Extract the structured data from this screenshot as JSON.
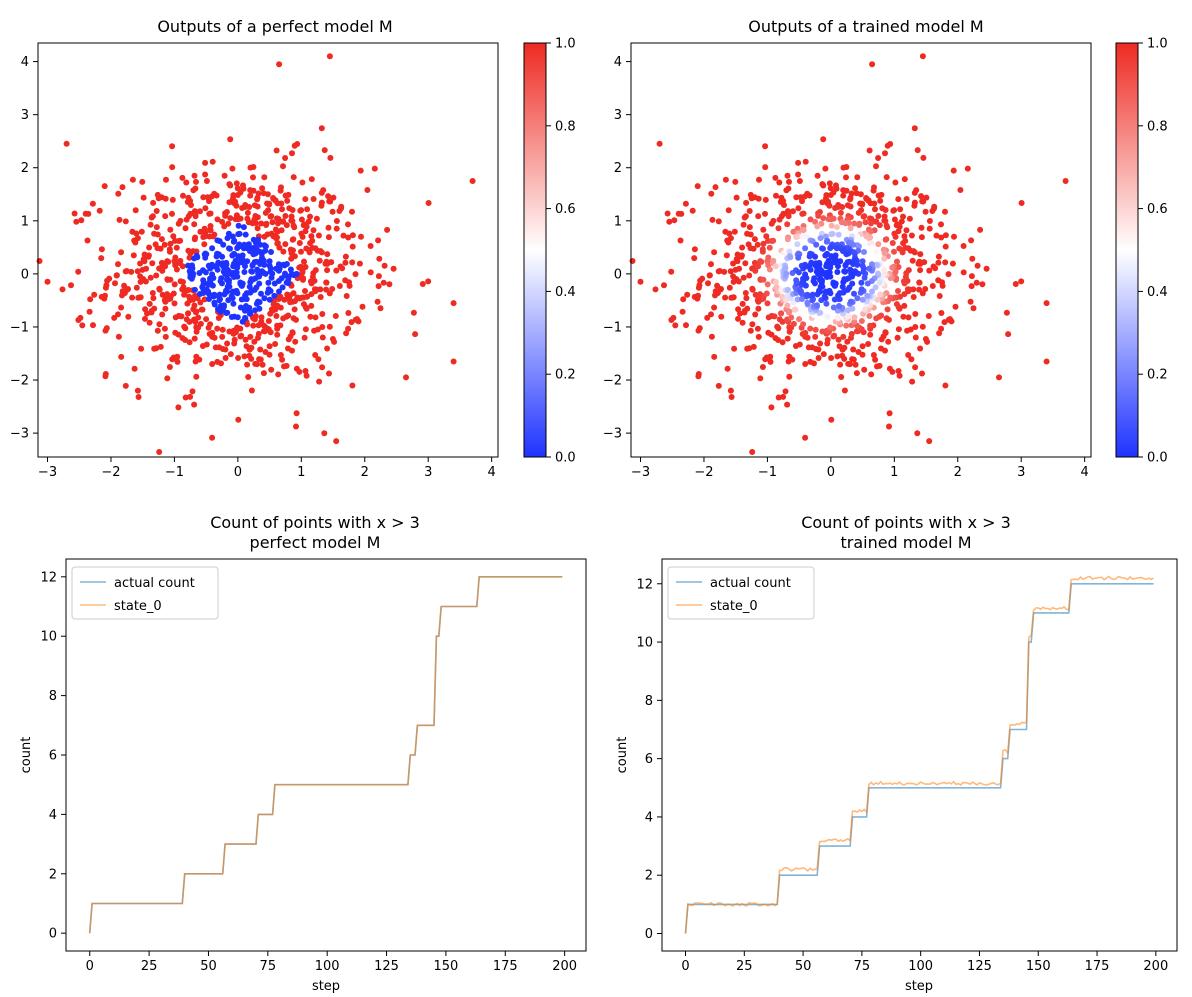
{
  "colors": {
    "blue_end": "#1f33ff",
    "mid": "#ffffff",
    "red_end": "#ee2a22",
    "line_actual": "#1f77b4",
    "line_state": "#ff7f0e"
  },
  "chart_data": [
    {
      "type": "scatter",
      "title": "Outputs of a perfect model M",
      "xlim": [
        -3.15,
        4.1
      ],
      "ylim": [
        -3.45,
        4.35
      ],
      "x_ticks": [
        -3,
        -2,
        -1,
        0,
        1,
        2,
        3,
        4
      ],
      "x_tick_labels": [
        "−3",
        "−2",
        "−1",
        "0",
        "1",
        "2",
        "3",
        "4"
      ],
      "y_ticks": [
        -3,
        -2,
        -1,
        0,
        1,
        2,
        3,
        4
      ],
      "y_tick_labels": [
        "−3",
        "−2",
        "−1",
        "0",
        "1",
        "2",
        "3",
        "4"
      ],
      "points_sample_count": 1000,
      "rule": "value 0 when |x|+|y| < 1 else 1",
      "colorbar": {
        "range": [
          0,
          1
        ],
        "ticks": [
          0.0,
          0.2,
          0.4,
          0.6,
          0.8,
          1.0
        ],
        "tick_labels": [
          "0.0",
          "0.2",
          "0.4",
          "0.6",
          "0.8",
          "1.0"
        ],
        "colormap": "bwr"
      },
      "outlier_points": [
        [
          -2.7,
          2.45
        ],
        [
          1.45,
          4.1
        ],
        [
          0.65,
          3.95
        ],
        [
          3.7,
          1.75
        ],
        [
          -3.0,
          -0.15
        ],
        [
          1.55,
          -3.15
        ],
        [
          3.4,
          -1.65
        ],
        [
          3.4,
          -0.55
        ],
        [
          2.65,
          -1.95
        ]
      ]
    },
    {
      "type": "scatter",
      "title": "Outputs of a trained model M",
      "xlim": [
        -3.15,
        4.1
      ],
      "ylim": [
        -3.45,
        4.35
      ],
      "x_ticks": [
        -3,
        -2,
        -1,
        0,
        1,
        2,
        3,
        4
      ],
      "x_tick_labels": [
        "−3",
        "−2",
        "−1",
        "0",
        "1",
        "2",
        "3",
        "4"
      ],
      "y_ticks": [
        -3,
        -2,
        -1,
        0,
        1,
        2,
        3,
        4
      ],
      "y_tick_labels": [
        "−3",
        "−2",
        "−1",
        "0",
        "1",
        "2",
        "3",
        "4"
      ],
      "points_sample_count": 1000,
      "rule": "smooth transition centered at radius ~0.85",
      "colorbar": {
        "range": [
          0,
          1
        ],
        "ticks": [
          0.0,
          0.2,
          0.4,
          0.6,
          0.8,
          1.0
        ],
        "tick_labels": [
          "0.0",
          "0.2",
          "0.4",
          "0.6",
          "0.8",
          "1.0"
        ],
        "colormap": "bwr"
      },
      "outlier_points": [
        [
          -2.7,
          2.45
        ],
        [
          1.45,
          4.1
        ],
        [
          0.65,
          3.95
        ],
        [
          3.7,
          1.75
        ],
        [
          -3.0,
          -0.15
        ],
        [
          1.55,
          -3.15
        ],
        [
          3.4,
          -1.65
        ],
        [
          3.4,
          -0.55
        ],
        [
          2.65,
          -1.95
        ]
      ]
    },
    {
      "type": "line",
      "title": "Count of points with x > 3",
      "subtitle": "perfect model M",
      "xlabel": "step",
      "ylabel": "count",
      "xlim": [
        -10,
        209
      ],
      "ylim": [
        -0.6,
        12.6
      ],
      "x_ticks": [
        0,
        25,
        50,
        75,
        100,
        125,
        150,
        175,
        200
      ],
      "x_tick_labels": [
        "0",
        "25",
        "50",
        "75",
        "100",
        "125",
        "150",
        "175",
        "200"
      ],
      "y_ticks": [
        0,
        2,
        4,
        6,
        8,
        10,
        12
      ],
      "y_tick_labels": [
        "0",
        "2",
        "4",
        "6",
        "8",
        "10",
        "12"
      ],
      "legend_position": "upper-left",
      "series": [
        {
          "name": "actual count",
          "step_changes": [
            [
              0,
              0
            ],
            [
              1,
              1
            ],
            [
              40,
              2
            ],
            [
              57,
              3
            ],
            [
              71,
              4
            ],
            [
              78,
              5
            ],
            [
              135,
              6
            ],
            [
              138,
              7
            ],
            [
              146,
              10
            ],
            [
              148,
              11
            ],
            [
              151,
              11
            ],
            [
              164,
              12
            ]
          ],
          "noise": 0
        },
        {
          "name": "state_0",
          "step_changes": [
            [
              0,
              0
            ],
            [
              1,
              1
            ],
            [
              40,
              2
            ],
            [
              57,
              3
            ],
            [
              71,
              4
            ],
            [
              78,
              5
            ],
            [
              135,
              6
            ],
            [
              138,
              7
            ],
            [
              146,
              10
            ],
            [
              148,
              11
            ],
            [
              151,
              11
            ],
            [
              164,
              12
            ]
          ],
          "noise": 0
        }
      ],
      "x_max": 199
    },
    {
      "type": "line",
      "title": "Count of points with x > 3",
      "subtitle": "trained model M",
      "xlabel": "step",
      "ylabel": "count",
      "xlim": [
        -10,
        209
      ],
      "ylim": [
        -0.6,
        12.85
      ],
      "x_ticks": [
        0,
        25,
        50,
        75,
        100,
        125,
        150,
        175,
        200
      ],
      "x_tick_labels": [
        "0",
        "25",
        "50",
        "75",
        "100",
        "125",
        "150",
        "175",
        "200"
      ],
      "y_ticks": [
        0,
        2,
        4,
        6,
        8,
        10,
        12
      ],
      "y_tick_labels": [
        "0",
        "2",
        "4",
        "6",
        "8",
        "10",
        "12"
      ],
      "legend_position": "upper-left",
      "series": [
        {
          "name": "actual count",
          "step_changes": [
            [
              0,
              0
            ],
            [
              1,
              1
            ],
            [
              40,
              2
            ],
            [
              57,
              3
            ],
            [
              71,
              4
            ],
            [
              78,
              5
            ],
            [
              135,
              6
            ],
            [
              138,
              7
            ],
            [
              146,
              10
            ],
            [
              148,
              11
            ],
            [
              151,
              11
            ],
            [
              164,
              12
            ]
          ],
          "noise": 0
        },
        {
          "name": "state_0",
          "step_changes": [
            [
              0,
              0
            ],
            [
              1,
              1
            ],
            [
              40,
              2.2
            ],
            [
              57,
              3.2
            ],
            [
              71,
              4.2
            ],
            [
              78,
              5.15
            ],
            [
              135,
              6.25
            ],
            [
              138,
              7.2
            ],
            [
              146,
              10.2
            ],
            [
              148,
              11.15
            ],
            [
              151,
              11.15
            ],
            [
              164,
              12.2
            ]
          ],
          "noise": 0.06
        }
      ],
      "x_max": 199
    }
  ],
  "legend": {
    "actual_label": "actual count",
    "state_label": "state_0"
  }
}
